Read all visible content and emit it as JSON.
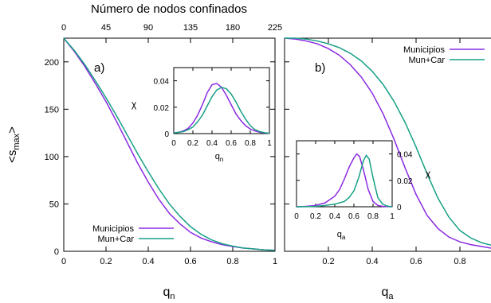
{
  "colors": {
    "municipios": "#8a2be2",
    "mun_car": "#17a085"
  },
  "chart_data": [
    {
      "id": "panel_a",
      "type": "line",
      "panel_label": "a)",
      "xlabel": "q",
      "xlabel_sub": "n",
      "ylabel": "<s",
      "ylabel_sub": "max",
      "ylabel_end": ">",
      "top_axis_title": "Número de nodos confinados",
      "top_ticks": [
        "0",
        "45",
        "90",
        "135",
        "180",
        "225"
      ],
      "xlim": [
        0,
        1
      ],
      "ylim": [
        0,
        225
      ],
      "xticks": [
        0,
        0.2,
        0.4,
        0.6,
        0.8,
        1
      ],
      "xtick_labels": [
        "0",
        "0.2",
        "0.4",
        "0.6",
        "0.8",
        "1"
      ],
      "yticks": [
        0,
        50,
        100,
        150,
        200
      ],
      "ytick_labels": [
        "0",
        "50",
        "100",
        "150",
        "200"
      ],
      "legend": "bottom-left",
      "series": [
        {
          "name": "Municipios",
          "color": "#8a2be2",
          "x": [
            0,
            0.05,
            0.1,
            0.15,
            0.2,
            0.25,
            0.3,
            0.35,
            0.4,
            0.45,
            0.5,
            0.55,
            0.6,
            0.65,
            0.7,
            0.75,
            0.8,
            0.85,
            0.9,
            0.95,
            1.0
          ],
          "y": [
            225,
            211,
            195,
            177,
            158,
            137,
            115,
            93,
            73,
            55,
            40,
            29,
            20,
            14,
            10,
            7,
            5,
            3.5,
            2.5,
            1.5,
            1
          ]
        },
        {
          "name": "Mun+Car",
          "color": "#17a085",
          "x": [
            0,
            0.05,
            0.1,
            0.15,
            0.2,
            0.25,
            0.3,
            0.35,
            0.4,
            0.45,
            0.5,
            0.55,
            0.6,
            0.65,
            0.7,
            0.75,
            0.8,
            0.85,
            0.9,
            0.95,
            1.0
          ],
          "y": [
            225,
            212,
            197,
            180,
            162,
            143,
            123,
            103,
            84,
            66,
            50,
            37,
            26,
            18,
            12,
            8,
            5.5,
            3.5,
            2.5,
            1.5,
            1
          ]
        }
      ],
      "inset": {
        "xlabel": "q",
        "xlabel_sub": "n",
        "ylabel": "χ",
        "xlim": [
          0,
          1
        ],
        "ylim": [
          0,
          0.05
        ],
        "xticks": [
          0,
          0.2,
          0.4,
          0.6,
          0.8,
          1
        ],
        "xtick_labels": [
          "0",
          "0.2",
          "0.4",
          "0.6",
          "0.8",
          "1"
        ],
        "yticks": [
          0,
          0.02,
          0.04
        ],
        "ytick_labels": [
          "0",
          "0.02",
          "0.04"
        ],
        "series": [
          {
            "name": "Municipios",
            "color": "#8a2be2",
            "x": [
              0,
              0.05,
              0.1,
              0.15,
              0.2,
              0.25,
              0.3,
              0.35,
              0.4,
              0.45,
              0.5,
              0.55,
              0.6,
              0.65,
              0.7,
              0.75,
              0.8,
              0.85,
              0.9,
              0.95,
              1.0
            ],
            "y": [
              0.0005,
              0.001,
              0.002,
              0.004,
              0.008,
              0.014,
              0.022,
              0.031,
              0.037,
              0.038,
              0.035,
              0.029,
              0.022,
              0.015,
              0.01,
              0.006,
              0.0035,
              0.002,
              0.001,
              0.0005,
              0.0002
            ]
          },
          {
            "name": "Mun+Car",
            "color": "#17a085",
            "x": [
              0,
              0.05,
              0.1,
              0.15,
              0.2,
              0.25,
              0.3,
              0.35,
              0.4,
              0.45,
              0.5,
              0.55,
              0.6,
              0.65,
              0.7,
              0.75,
              0.8,
              0.85,
              0.9,
              0.95,
              1.0
            ],
            "y": [
              0.0005,
              0.001,
              0.0015,
              0.003,
              0.005,
              0.009,
              0.014,
              0.021,
              0.028,
              0.033,
              0.035,
              0.034,
              0.03,
              0.024,
              0.017,
              0.011,
              0.006,
              0.003,
              0.0015,
              0.0007,
              0.0003
            ]
          }
        ]
      }
    },
    {
      "id": "panel_b",
      "type": "line",
      "panel_label": "b)",
      "xlabel": "q",
      "xlabel_sub": "a",
      "xlim": [
        0,
        1
      ],
      "ylim": [
        0,
        225
      ],
      "xticks": [
        0.2,
        0.4,
        0.6,
        0.8
      ],
      "xtick_labels": [
        "0.2",
        "0.4",
        "0.6",
        "0.8"
      ],
      "legend": "top-right",
      "series": [
        {
          "name": "Municipios",
          "color": "#8a2be2",
          "x": [
            0,
            0.05,
            0.1,
            0.15,
            0.2,
            0.25,
            0.3,
            0.35,
            0.4,
            0.45,
            0.5,
            0.55,
            0.6,
            0.65,
            0.7,
            0.75,
            0.8,
            0.85,
            0.9,
            0.95,
            1.0
          ],
          "y": [
            225,
            224,
            222,
            219,
            214,
            207,
            197,
            184,
            167,
            145,
            118,
            88,
            60,
            38,
            24,
            15,
            10,
            7,
            5,
            3,
            2
          ]
        },
        {
          "name": "Mun+Car",
          "color": "#17a085",
          "x": [
            0,
            0.05,
            0.1,
            0.15,
            0.2,
            0.25,
            0.3,
            0.35,
            0.4,
            0.45,
            0.5,
            0.55,
            0.6,
            0.65,
            0.7,
            0.75,
            0.8,
            0.85,
            0.9,
            0.95,
            1.0
          ],
          "y": [
            225,
            225,
            224,
            222,
            219,
            215,
            209,
            201,
            190,
            176,
            158,
            136,
            110,
            82,
            56,
            36,
            22,
            14,
            9,
            6,
            4
          ]
        }
      ],
      "inset": {
        "xlabel": "q",
        "xlabel_sub": "a",
        "ylabel": "χ",
        "xlim": [
          0,
          1
        ],
        "ylim": [
          0,
          0.05
        ],
        "xticks": [
          0,
          0.2,
          0.4,
          0.6,
          0.8,
          1
        ],
        "xtick_labels": [
          "0",
          "0.2",
          "0.4",
          "0.6",
          "0.8",
          "1"
        ],
        "yticks": [
          0,
          0.02,
          0.04
        ],
        "ytick_labels": [
          "0",
          "0.02",
          "0.04"
        ],
        "series": [
          {
            "name": "Municipios",
            "color": "#8a2be2",
            "x": [
              0,
              0.1,
              0.2,
              0.3,
              0.4,
              0.45,
              0.5,
              0.55,
              0.6,
              0.63,
              0.66,
              0.7,
              0.75,
              0.8,
              0.85,
              0.9,
              1.0
            ],
            "y": [
              0,
              0.0003,
              0.001,
              0.003,
              0.008,
              0.013,
              0.021,
              0.03,
              0.037,
              0.04,
              0.038,
              0.028,
              0.013,
              0.004,
              0.001,
              0.0003,
              0
            ]
          },
          {
            "name": "Mun+Car",
            "color": "#17a085",
            "x": [
              0,
              0.1,
              0.2,
              0.3,
              0.4,
              0.5,
              0.55,
              0.6,
              0.65,
              0.7,
              0.73,
              0.76,
              0.8,
              0.85,
              0.9,
              0.95,
              1.0
            ],
            "y": [
              0,
              0.0001,
              0.0003,
              0.001,
              0.002,
              0.004,
              0.007,
              0.012,
              0.022,
              0.035,
              0.039,
              0.036,
              0.022,
              0.007,
              0.002,
              0.0005,
              0
            ]
          }
        ]
      }
    }
  ]
}
